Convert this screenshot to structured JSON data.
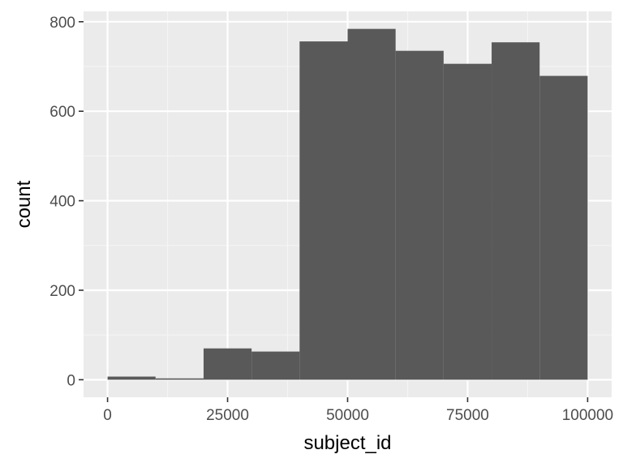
{
  "chart_data": {
    "type": "bar",
    "title": "",
    "xlabel": "subject_id",
    "ylabel": "count",
    "bin_width": 10000,
    "bins": [
      {
        "start": 0,
        "end": 10000,
        "count": 7
      },
      {
        "start": 10000,
        "end": 20000,
        "count": 3
      },
      {
        "start": 20000,
        "end": 30000,
        "count": 70
      },
      {
        "start": 30000,
        "end": 40000,
        "count": 63
      },
      {
        "start": 40000,
        "end": 50000,
        "count": 756
      },
      {
        "start": 50000,
        "end": 60000,
        "count": 784
      },
      {
        "start": 60000,
        "end": 70000,
        "count": 735
      },
      {
        "start": 70000,
        "end": 80000,
        "count": 706
      },
      {
        "start": 80000,
        "end": 90000,
        "count": 754
      },
      {
        "start": 90000,
        "end": 100000,
        "count": 679
      }
    ],
    "xlim": [
      -5000,
      105000
    ],
    "ylim": [
      -39.2,
      823.2
    ],
    "x_ticks": [
      {
        "value": 0,
        "label": "0"
      },
      {
        "value": 25000,
        "label": "25000"
      },
      {
        "value": 50000,
        "label": "50000"
      },
      {
        "value": 75000,
        "label": "75000"
      },
      {
        "value": 100000,
        "label": "100000"
      }
    ],
    "y_ticks": [
      {
        "value": 0,
        "label": "0"
      },
      {
        "value": 200,
        "label": "200"
      },
      {
        "value": 400,
        "label": "400"
      },
      {
        "value": 600,
        "label": "600"
      },
      {
        "value": 800,
        "label": "800"
      }
    ],
    "grid": true,
    "colors": {
      "panel_background": "#ebebeb",
      "grid_major": "#ffffff",
      "grid_minor": "#f5f5f5",
      "bar_fill": "#595959",
      "tick_mark": "#333333"
    }
  }
}
